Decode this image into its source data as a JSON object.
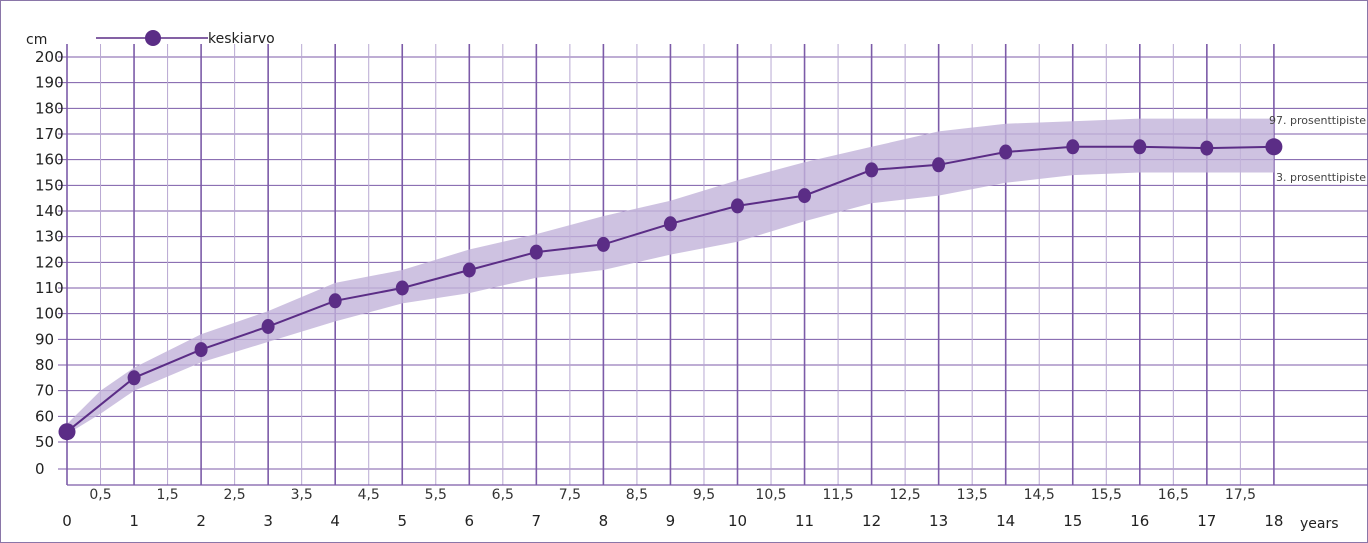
{
  "chart_data": {
    "type": "line",
    "y_unit": "cm",
    "x_unit": "years",
    "y_ticks": [
      "0",
      "50",
      "60",
      "70",
      "80",
      "90",
      "100",
      "110",
      "120",
      "130",
      "140",
      "150",
      "160",
      "170",
      "180",
      "190",
      "200"
    ],
    "x_major_ticks": [
      "0",
      "1",
      "2",
      "3",
      "4",
      "5",
      "6",
      "7",
      "8",
      "9",
      "10",
      "11",
      "12",
      "13",
      "14",
      "15",
      "16",
      "17",
      "18"
    ],
    "x_minor_ticks": [
      "0,5",
      "1,5",
      "2,5",
      "3,5",
      "4,5",
      "5,5",
      "6,5",
      "7,5",
      "8,5",
      "9,5",
      "10,5",
      "11,5",
      "12,5",
      "13,5",
      "14,5",
      "15,5",
      "16,5",
      "17,5"
    ],
    "legend": {
      "label": "keskiarvo",
      "placement": "top-left"
    },
    "band_labels": {
      "upper": "97. prosenttipiste",
      "lower": "3. prosenttipiste"
    },
    "series": [
      {
        "name": "keskiarvo",
        "x": [
          0,
          1,
          2,
          3,
          4,
          5,
          6,
          7,
          8,
          9,
          10,
          11,
          12,
          13,
          14,
          15,
          16,
          17,
          18
        ],
        "values": [
          54,
          75,
          86,
          95,
          105,
          110,
          117,
          124,
          127,
          135,
          142,
          146,
          156,
          158,
          163,
          165,
          165,
          164.5,
          165
        ]
      }
    ],
    "band": {
      "x": [
        0,
        0.5,
        1,
        2,
        3,
        4,
        5,
        6,
        7,
        8,
        9,
        10,
        11,
        12,
        13,
        14,
        15,
        16,
        17,
        18
      ],
      "upper": [
        57,
        70,
        79,
        92,
        101,
        112,
        117,
        125,
        131,
        138,
        144,
        152,
        159,
        165,
        171,
        174,
        175,
        176,
        176,
        176
      ],
      "lower": [
        53,
        61,
        70,
        81,
        89,
        97,
        104,
        108,
        114,
        117,
        123,
        128,
        136,
        143,
        146,
        151,
        154,
        155,
        155,
        155
      ]
    },
    "xlim": [
      0,
      18
    ],
    "grid": true,
    "colors": {
      "line": "#5b2d86",
      "band": "#c2b3da",
      "grid_major": "#7c5ba8",
      "grid_minor": "#b8a8d2"
    }
  }
}
